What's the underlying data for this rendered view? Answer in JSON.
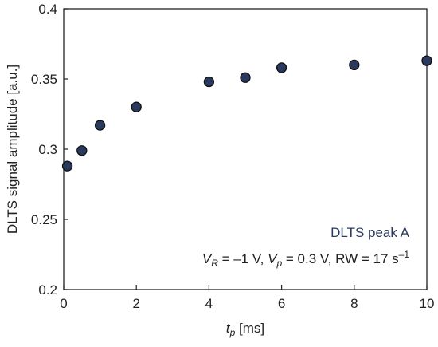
{
  "chart_data": {
    "type": "scatter",
    "xlim": [
      0,
      10
    ],
    "ylim": [
      0.2,
      0.4
    ],
    "x_ticks": [
      0,
      2,
      4,
      6,
      8,
      10
    ],
    "y_ticks": [
      0.2,
      0.25,
      0.3,
      0.35,
      0.4
    ],
    "x_tick_labels": [
      "0",
      "2",
      "4",
      "6",
      "8",
      "10"
    ],
    "y_tick_labels": [
      "0.2",
      "0.25",
      "0.3",
      "0.35",
      "0.4"
    ],
    "xlabel": {
      "symbol": "t",
      "subscript": "p",
      "unit": "[ms]"
    },
    "ylabel": "DLTS signal amplitude [a.u.]",
    "grid": false,
    "legend_position": "bottom-right",
    "marker_color": "#2a3a5e",
    "series": [
      {
        "name": "DLTS peak A",
        "x": [
          0.1,
          0.5,
          1,
          2,
          4,
          5,
          6,
          8,
          10
        ],
        "y": [
          0.288,
          0.299,
          0.317,
          0.33,
          0.348,
          0.351,
          0.358,
          0.36,
          0.363
        ]
      }
    ],
    "conditions": {
      "vr_symbol": "V",
      "vr_sub": "R",
      "vr_value": " = –1 V, ",
      "vp_symbol": "V",
      "vp_sub": "p",
      "vp_value": " = 0.3 V, RW = 17 s",
      "rw_exp": "–1"
    }
  }
}
